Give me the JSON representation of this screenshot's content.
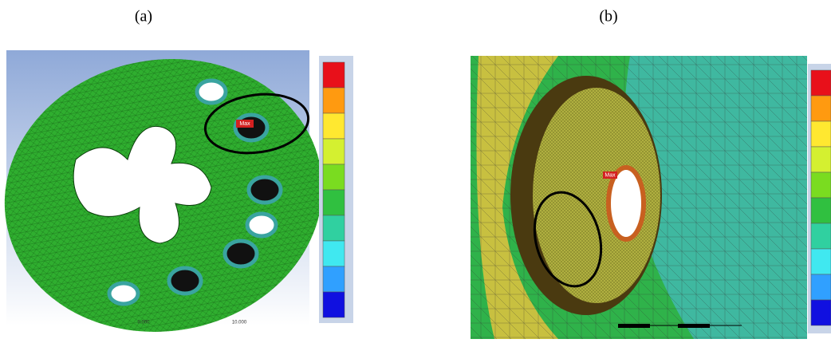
{
  "panels": [
    {
      "label": "(a)",
      "marker": "Max",
      "scale": [
        "0.000",
        "10.000"
      ]
    },
    {
      "label": "(b)",
      "marker": "Max"
    }
  ]
}
